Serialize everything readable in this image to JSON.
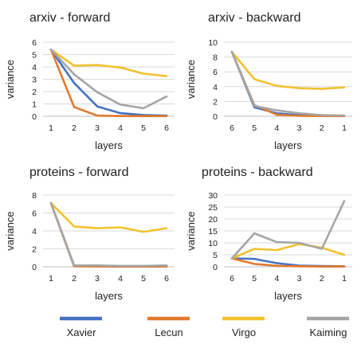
{
  "colors": {
    "Xavier": "#4472c4",
    "Lecun": "#e07a2f",
    "Virgo": "#f2c12e",
    "Kaiming": "#a5a5a5",
    "grid": "#d9d9d9",
    "axis": "#bfbfbf"
  },
  "legend": [
    "Xavier",
    "Lecun",
    "Virgo",
    "Kaiming"
  ],
  "chart_data": [
    {
      "type": "line",
      "title": "arxiv - forward",
      "xlabel": "layers",
      "ylabel": "variance",
      "categories": [
        "1",
        "2",
        "3",
        "4",
        "5",
        "6"
      ],
      "ylim": [
        0,
        6
      ],
      "yticks": [
        0,
        1,
        2,
        3,
        4,
        5,
        6
      ],
      "grid": true,
      "series": [
        {
          "name": "Xavier",
          "values": [
            5.4,
            2.7,
            0.8,
            0.25,
            0.1,
            0.05
          ]
        },
        {
          "name": "Lecun",
          "values": [
            5.4,
            0.75,
            0.05,
            0.02,
            0.01,
            0.01
          ]
        },
        {
          "name": "Virgo",
          "values": [
            5.4,
            4.1,
            4.15,
            3.95,
            3.45,
            3.25
          ]
        },
        {
          "name": "Kaiming",
          "values": [
            5.4,
            3.4,
            1.95,
            0.95,
            0.65,
            1.6
          ]
        }
      ]
    },
    {
      "type": "line",
      "title": "arxiv - backward",
      "xlabel": "layers",
      "ylabel": "variance",
      "categories": [
        "6",
        "5",
        "4",
        "3",
        "2",
        "1"
      ],
      "ylim": [
        0,
        10
      ],
      "yticks": [
        0,
        2,
        4,
        6,
        8,
        10
      ],
      "grid": true,
      "series": [
        {
          "name": "Xavier",
          "values": [
            8.7,
            1.2,
            0.4,
            0.15,
            0.08,
            0.05
          ]
        },
        {
          "name": "Lecun",
          "values": [
            8.7,
            1.5,
            0.2,
            0.05,
            0.03,
            0.02
          ]
        },
        {
          "name": "Virgo",
          "values": [
            8.7,
            5.0,
            4.1,
            3.8,
            3.7,
            3.9
          ]
        },
        {
          "name": "Kaiming",
          "values": [
            8.7,
            1.4,
            0.8,
            0.4,
            0.15,
            0.1
          ]
        }
      ]
    },
    {
      "type": "line",
      "title": "proteins - forward",
      "xlabel": "layers",
      "ylabel": "variance",
      "categories": [
        "1",
        "2",
        "3",
        "4",
        "5",
        "6"
      ],
      "ylim": [
        0,
        8
      ],
      "yticks": [
        0,
        2,
        4,
        6,
        8
      ],
      "grid": true,
      "series": [
        {
          "name": "Xavier",
          "values": [
            7.1,
            0.1,
            0.08,
            0.05,
            0.05,
            0.05
          ]
        },
        {
          "name": "Lecun",
          "values": [
            7.1,
            0.05,
            0.03,
            0.02,
            0.02,
            0.02
          ]
        },
        {
          "name": "Virgo",
          "values": [
            7.1,
            4.5,
            4.3,
            4.4,
            3.9,
            4.3
          ]
        },
        {
          "name": "Kaiming",
          "values": [
            7.1,
            0.15,
            0.15,
            0.1,
            0.1,
            0.15
          ]
        }
      ]
    },
    {
      "type": "line",
      "title": "proteins - backward",
      "xlabel": "layers",
      "ylabel": "variance",
      "categories": [
        "6",
        "5",
        "4",
        "3",
        "2",
        "1"
      ],
      "ylim": [
        0,
        30
      ],
      "yticks": [
        0,
        5,
        10,
        15,
        20,
        25,
        30
      ],
      "grid": true,
      "series": [
        {
          "name": "Xavier",
          "values": [
            3.5,
            3.3,
            1.5,
            0.5,
            0.3,
            0.2
          ]
        },
        {
          "name": "Lecun",
          "values": [
            3.5,
            1.2,
            0.4,
            0.2,
            0.1,
            0.1
          ]
        },
        {
          "name": "Virgo",
          "values": [
            3.5,
            7.5,
            7.0,
            9.5,
            8.0,
            5.0
          ]
        },
        {
          "name": "Kaiming",
          "values": [
            3.5,
            14.0,
            10.3,
            10.0,
            7.5,
            27.5
          ]
        }
      ]
    }
  ]
}
